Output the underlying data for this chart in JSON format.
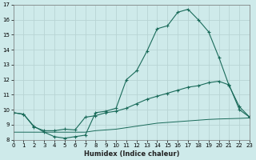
{
  "xlabel": "Humidex (Indice chaleur)",
  "x_min": 0,
  "x_max": 23,
  "y_min": 8,
  "y_max": 17,
  "bg_color": "#ceeaea",
  "grid_color": "#b8d4d4",
  "line_color": "#1a6b5a",
  "curve1_x": [
    0,
    1,
    2,
    3,
    4,
    5,
    6,
    7,
    8,
    9,
    10,
    11,
    12,
    13,
    14,
    15,
    16,
    17,
    18,
    19,
    20,
    21,
    22,
    23
  ],
  "curve1_y": [
    9.8,
    9.7,
    8.9,
    8.5,
    8.2,
    8.1,
    8.2,
    8.3,
    9.8,
    9.9,
    10.1,
    12.0,
    12.6,
    13.9,
    15.4,
    15.6,
    16.5,
    16.7,
    16.0,
    15.2,
    13.5,
    11.6,
    10.2,
    9.5
  ],
  "curve2_x": [
    0,
    1,
    2,
    3,
    4,
    5,
    6,
    7,
    8,
    9,
    10,
    11,
    12,
    13,
    14,
    15,
    16,
    17,
    18,
    19,
    20,
    21,
    22,
    23
  ],
  "curve2_y": [
    9.8,
    9.7,
    8.85,
    8.6,
    8.6,
    8.7,
    8.65,
    9.5,
    9.6,
    9.8,
    9.9,
    10.1,
    10.4,
    10.7,
    10.9,
    11.1,
    11.3,
    11.5,
    11.6,
    11.8,
    11.9,
    11.65,
    10.0,
    9.5
  ],
  "curve3_x": [
    0,
    1,
    2,
    3,
    4,
    5,
    6,
    7,
    8,
    9,
    10,
    11,
    12,
    13,
    14,
    15,
    16,
    17,
    18,
    19,
    20,
    21,
    22,
    23
  ],
  "curve3_y": [
    8.5,
    8.5,
    8.5,
    8.5,
    8.5,
    8.5,
    8.5,
    8.5,
    8.6,
    8.65,
    8.7,
    8.8,
    8.9,
    9.0,
    9.1,
    9.15,
    9.2,
    9.25,
    9.3,
    9.35,
    9.38,
    9.4,
    9.42,
    9.45
  ],
  "yticks": [
    8,
    9,
    10,
    11,
    12,
    13,
    14,
    15,
    16,
    17
  ],
  "xticks": [
    0,
    1,
    2,
    3,
    4,
    5,
    6,
    7,
    8,
    9,
    10,
    11,
    12,
    13,
    14,
    15,
    16,
    17,
    18,
    19,
    20,
    21,
    22,
    23
  ]
}
